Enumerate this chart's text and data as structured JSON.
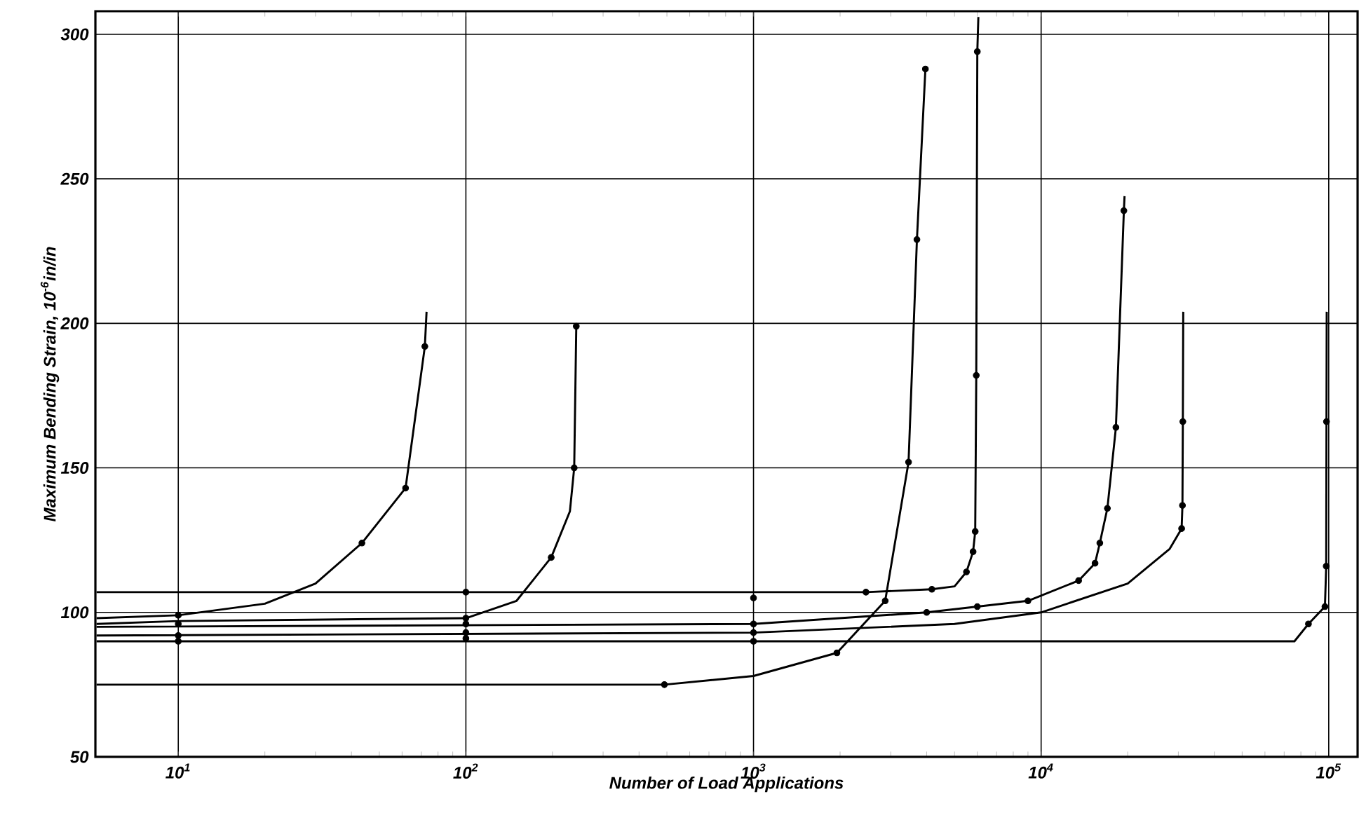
{
  "chart_data": {
    "type": "line",
    "xlabel": "Number of Load Applications",
    "ylabel": "Maximum Bending Strain, 10$^{-6}$in/in",
    "log": "x",
    "grid": true,
    "xlim": [
      5.15,
      126000
    ],
    "ylim": [
      50,
      308
    ],
    "xticks": [
      {
        "value": 10,
        "label": "10$^{1}$"
      },
      {
        "value": 100,
        "label": "10$^{2}$"
      },
      {
        "value": 1000,
        "label": "10$^{3}$"
      },
      {
        "value": 10000,
        "label": "10$^{4}$"
      },
      {
        "value": 100000,
        "label": "10$^{5}$"
      }
    ],
    "yticks": [
      50,
      100,
      150,
      200,
      250,
      300
    ],
    "series": [
      {
        "color": "#000000",
        "x": [
          5.2,
          10,
          20,
          30,
          43.5,
          61.7,
          72,
          73
        ],
        "values": [
          98,
          99,
          103,
          110,
          124,
          143,
          192,
          204
        ]
      },
      {
        "color": "#000000",
        "x": [
          5.2,
          10,
          100,
          150,
          198,
          230,
          238,
          242
        ],
        "values": [
          96,
          97,
          98,
          104,
          119,
          135,
          150,
          199
        ]
      },
      {
        "color": "#000000",
        "x": [
          5.2,
          100,
          1000,
          2460,
          4170,
          5000,
          5500,
          5800,
          5900,
          5950,
          6000,
          6050
        ],
        "values": [
          107,
          107,
          107,
          107,
          108,
          109,
          114,
          121,
          128,
          182,
          294,
          306
        ]
      },
      {
        "color": "#000000",
        "x": [
          5.2,
          490,
          1000,
          1950,
          2870,
          3460,
          3700,
          3960
        ],
        "values": [
          75,
          75,
          78,
          86,
          104,
          152,
          229,
          288
        ]
      },
      {
        "color": "#000000",
        "x": [
          5.2,
          1000,
          4000,
          6000,
          9000,
          13500,
          15400,
          16000,
          17000,
          18200,
          19400,
          19500
        ],
        "values": [
          95,
          96,
          100,
          102,
          104,
          111,
          117,
          124,
          136,
          164,
          239,
          244
        ]
      },
      {
        "color": "#000000",
        "x": [
          5.2,
          1000,
          5000,
          10000,
          20000,
          28000,
          30800,
          31000,
          31100,
          31200
        ],
        "values": [
          92,
          93,
          96,
          100,
          110,
          122,
          129,
          137,
          166,
          204
        ]
      },
      {
        "color": "#000000",
        "x": [
          5.2,
          76000,
          85000,
          97000,
          98000,
          98200,
          98400
        ],
        "values": [
          90,
          90,
          96,
          102,
          116,
          166,
          204
        ]
      },
      {
        "type": "scatter",
        "marker": "circle",
        "color": "#000000",
        "x": [
          10,
          10,
          10,
          10,
          43.5,
          61.7,
          72,
          100,
          100,
          100,
          100,
          100,
          198,
          238,
          242,
          1000,
          1000,
          1000,
          1000,
          2460,
          4170,
          5500,
          5800,
          5900,
          5950,
          6000,
          490,
          1950,
          2870,
          3460,
          3700,
          3960,
          4000,
          6000,
          9000,
          13500,
          15400,
          16000,
          17000,
          18200,
          19400,
          30800,
          31000,
          31100,
          85000,
          97000,
          98000,
          98200
        ],
        "values": [
          99,
          96,
          92,
          90,
          124,
          143,
          192,
          107,
          98,
          96,
          93,
          91,
          119,
          150,
          199,
          105,
          96,
          93,
          90,
          107,
          108,
          114,
          121,
          128,
          182,
          294,
          75,
          86,
          104,
          152,
          229,
          288,
          100,
          102,
          104,
          111,
          117,
          124,
          136,
          164,
          239,
          129,
          137,
          166,
          96,
          102,
          116,
          166
        ]
      }
    ]
  }
}
